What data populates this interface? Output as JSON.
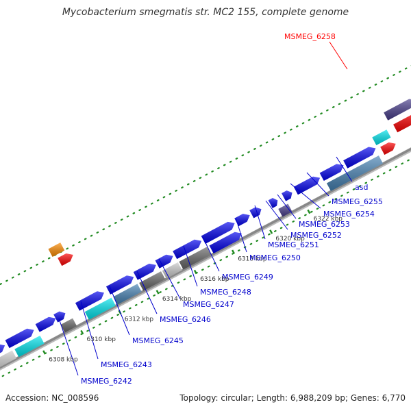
{
  "title": "Mycobacterium smegmatis str. MC2 155, complete genome",
  "accession": "Accession: NC_008596",
  "summary": "Topology: circular; Length: 6,988,209 bp; Genes: 6,770",
  "colors": {
    "highlight_label": "#ff0000",
    "gene_label": "#0000cc",
    "gene_blue": "#0000ee",
    "gene_cyan": "#00e5ee",
    "gene_red": "#ff0000",
    "gene_orange": "#ff8c00",
    "gene_navy": "#483d8b",
    "gene_steel": "#4682b4",
    "gene_gray": "#666666",
    "gene_lightgray": "#cccccc",
    "backbone": "#888888",
    "tick": "#228b22"
  },
  "tick_labels": [
    "6308 kbp",
    "6310 kbp",
    "6312 kbp",
    "6314 kbp",
    "6316 kbp",
    "6318 kbp",
    "6320 kbp",
    "6322 kbp"
  ],
  "gene_labels": [
    {
      "text": "MSMEG_6258",
      "highlight": true
    },
    {
      "text": "asd",
      "highlight": false
    },
    {
      "text": "MSMEG_6255",
      "highlight": false
    },
    {
      "text": "MSMEG_6254",
      "highlight": false
    },
    {
      "text": "MSMEG_6253",
      "highlight": false
    },
    {
      "text": "MSMEG_6252",
      "highlight": false
    },
    {
      "text": "MSMEG_6251",
      "highlight": false
    },
    {
      "text": "MSMEG_6250",
      "highlight": false
    },
    {
      "text": "MSMEG_6249",
      "highlight": false
    },
    {
      "text": "MSMEG_6248",
      "highlight": false
    },
    {
      "text": "MSMEG_6247",
      "highlight": false
    },
    {
      "text": "MSMEG_6246",
      "highlight": false
    },
    {
      "text": "MSMEG_6245",
      "highlight": false
    },
    {
      "text": "MSMEG_6243",
      "highlight": false
    },
    {
      "text": "MSMEG_6242",
      "highlight": false
    }
  ]
}
